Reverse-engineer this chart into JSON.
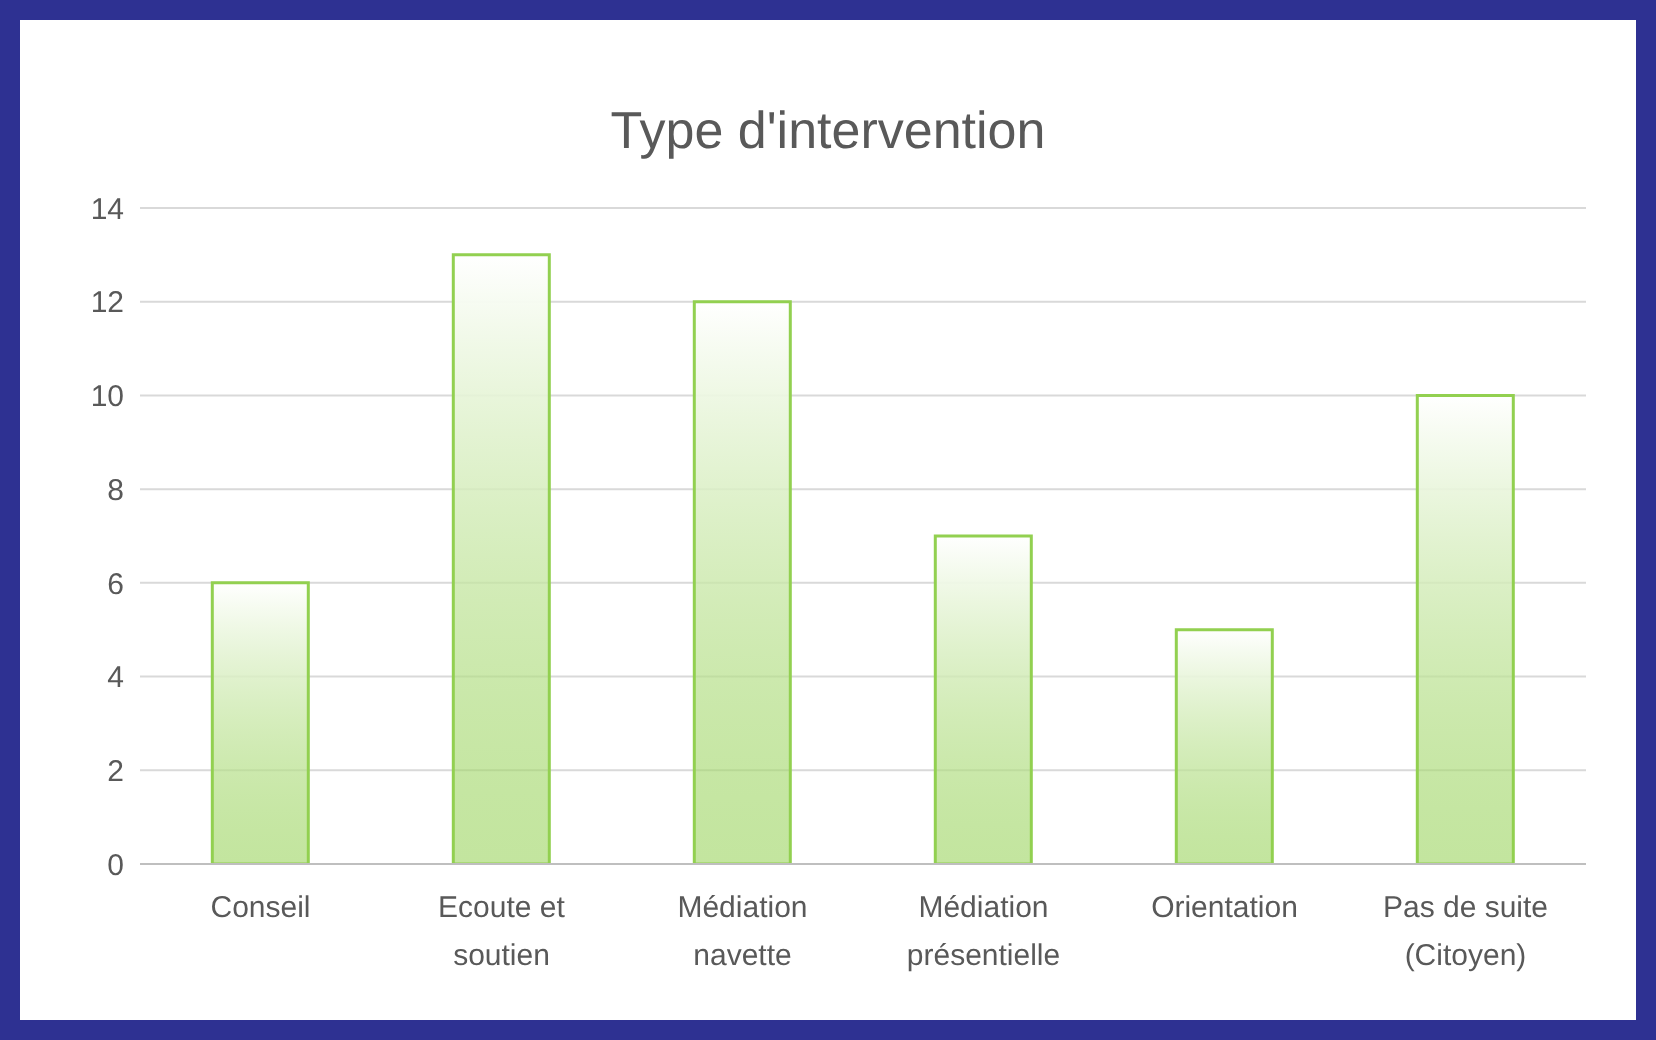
{
  "chart_data": {
    "type": "bar",
    "title": "Type d'intervention",
    "categories": [
      "Conseil",
      "Ecoute et soutien",
      "Médiation navette",
      "Médiation présentielle",
      "Orientation",
      "Pas de suite (Citoyen)"
    ],
    "values": [
      6,
      13,
      12,
      7,
      5,
      10
    ],
    "color": "#92d050",
    "ylim": [
      0,
      14
    ],
    "yticks": [
      0,
      2,
      4,
      6,
      8,
      10,
      12,
      14
    ],
    "grid": "y"
  }
}
